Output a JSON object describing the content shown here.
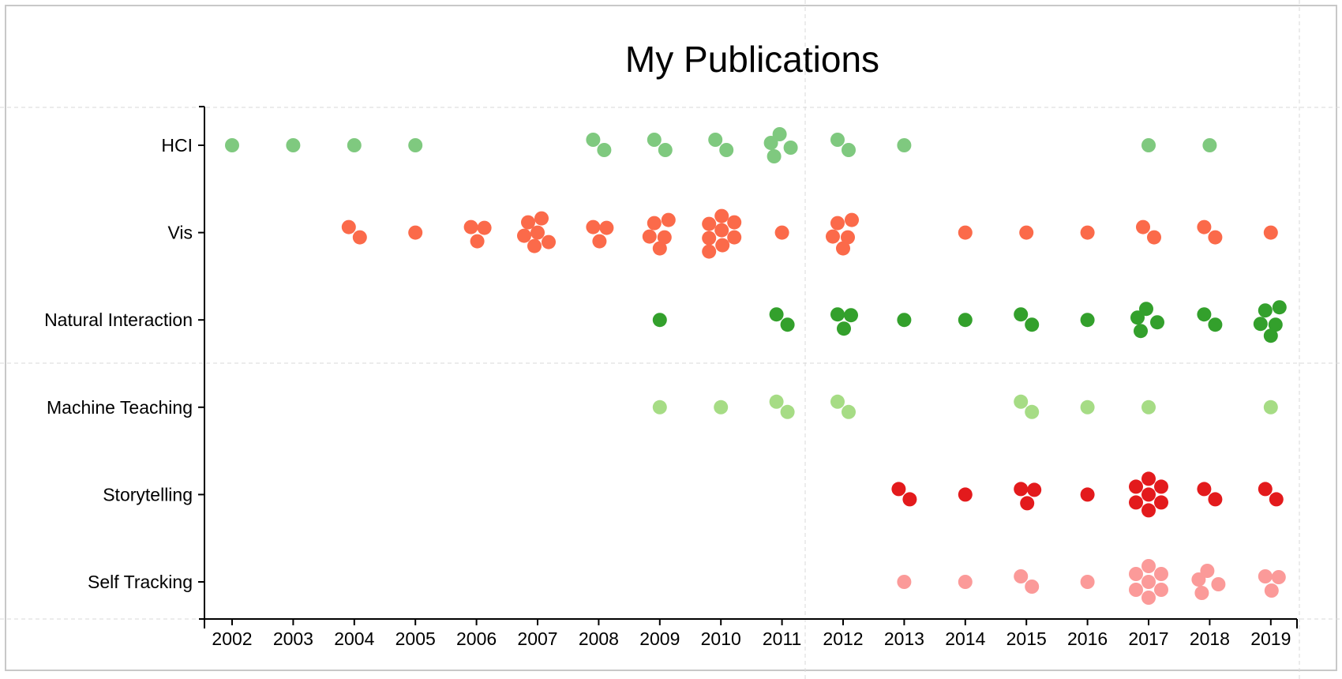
{
  "chart_data": {
    "type": "scatter",
    "title": "My Publications",
    "xlabel": "",
    "ylabel": "",
    "x_ticks": [
      "2002",
      "2003",
      "2004",
      "2005",
      "2006",
      "2007",
      "2008",
      "2009",
      "2010",
      "2011",
      "2012",
      "2013",
      "2014",
      "2015",
      "2016",
      "2017",
      "2018",
      "2019"
    ],
    "xlim": [
      2001.6,
      2019.45
    ],
    "categories": [
      "HCI",
      "Vis",
      "Natural Interaction",
      "Machine Teaching",
      "Storytelling",
      "Self Tracking"
    ],
    "colors": {
      "HCI": "#7fc97f",
      "Vis": "#fb6a4a",
      "Natural Interaction": "#33a02c",
      "Machine Teaching": "#a6dc85",
      "Storytelling": "#e31a1c",
      "Self Tracking": "#fb9a99"
    },
    "grid": "dashed",
    "series": [
      {
        "category": "HCI",
        "counts": {
          "2002": 1,
          "2003": 1,
          "2004": 1,
          "2005": 1,
          "2008": 2,
          "2009": 2,
          "2010": 2,
          "2011": 4,
          "2012": 2,
          "2013": 1,
          "2017": 1,
          "2018": 1
        }
      },
      {
        "category": "Vis",
        "counts": {
          "2004": 2,
          "2005": 1,
          "2006": 3,
          "2007": 6,
          "2008": 3,
          "2009": 5,
          "2010": 8,
          "2011": 1,
          "2012": 5,
          "2014": 1,
          "2015": 1,
          "2016": 1,
          "2017": 2,
          "2018": 2,
          "2019": 1
        }
      },
      {
        "category": "Natural Interaction",
        "counts": {
          "2009": 1,
          "2011": 2,
          "2012": 3,
          "2013": 1,
          "2014": 1,
          "2015": 2,
          "2016": 1,
          "2017": 4,
          "2018": 2,
          "2019": 5
        }
      },
      {
        "category": "Machine Teaching",
        "counts": {
          "2009": 1,
          "2010": 1,
          "2011": 2,
          "2012": 2,
          "2015": 2,
          "2016": 1,
          "2017": 1,
          "2019": 1
        }
      },
      {
        "category": "Storytelling",
        "counts": {
          "2013": 2,
          "2014": 1,
          "2015": 3,
          "2016": 1,
          "2017": 7,
          "2018": 2,
          "2019": 2
        }
      },
      {
        "category": "Self Tracking",
        "counts": {
          "2013": 1,
          "2014": 1,
          "2015": 2,
          "2016": 1,
          "2017": 7,
          "2018": 4,
          "2019": 3
        }
      }
    ]
  }
}
